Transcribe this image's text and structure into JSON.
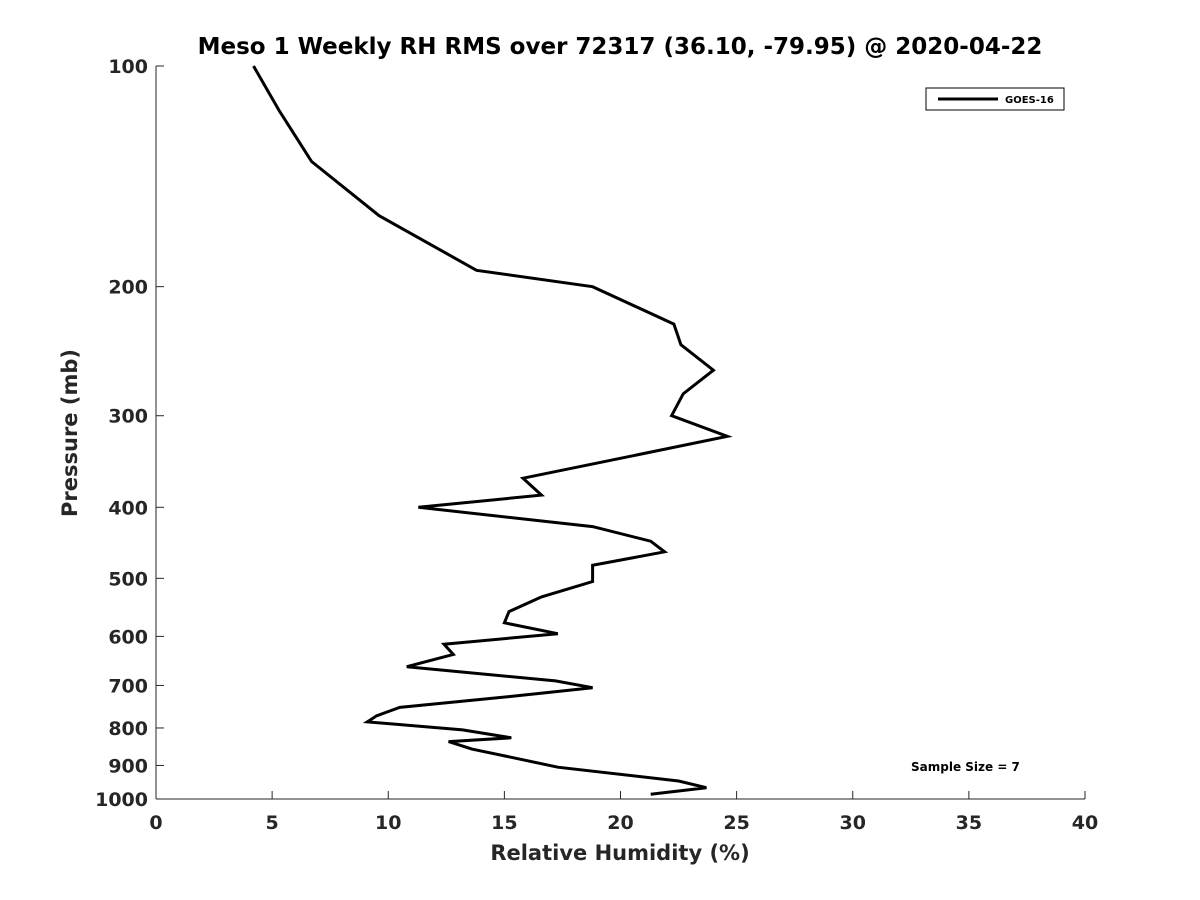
{
  "chart_data": {
    "type": "line",
    "title": "Meso 1 Weekly RH RMS over 72317 (36.10, -79.95) @ 2020-04-22",
    "xlabel": "Relative Humidity (%)",
    "ylabel": "Pressure (mb)",
    "xlim": [
      0,
      40
    ],
    "ylim": [
      100,
      1000
    ],
    "y_scale": "log",
    "y_inverted": true,
    "x_ticks": [
      0,
      5,
      10,
      15,
      20,
      25,
      30,
      35,
      40
    ],
    "y_ticks": [
      100,
      200,
      300,
      400,
      500,
      600,
      700,
      800,
      900,
      1000
    ],
    "grid": false,
    "legend_position": "top-right",
    "series": [
      {
        "name": "GOES-16",
        "color": "#000000",
        "x": [
          4.2,
          5.3,
          6.7,
          9.6,
          13.8,
          18.8,
          22.3,
          22.6,
          24.0,
          22.7,
          22.2,
          24.6,
          19.6,
          15.8,
          16.6,
          11.3,
          18.8,
          21.3,
          21.9,
          18.8,
          18.8,
          16.6,
          15.2,
          15.0,
          17.3,
          12.4,
          12.8,
          10.8,
          17.2,
          18.8,
          15.2,
          10.5,
          9.5,
          9.1,
          13.2,
          15.3,
          12.6,
          13.6,
          15.5,
          17.3,
          22.5,
          23.7,
          21.3
        ],
        "y": [
          100,
          115,
          135,
          160,
          190,
          200,
          225,
          240,
          260,
          280,
          300,
          320,
          345,
          365,
          385,
          400,
          425,
          445,
          460,
          480,
          505,
          530,
          555,
          575,
          595,
          615,
          635,
          660,
          690,
          705,
          725,
          750,
          770,
          785,
          805,
          825,
          835,
          855,
          880,
          905,
          945,
          965,
          985
        ]
      }
    ],
    "annotations": [
      "Sample Size = 7"
    ]
  }
}
